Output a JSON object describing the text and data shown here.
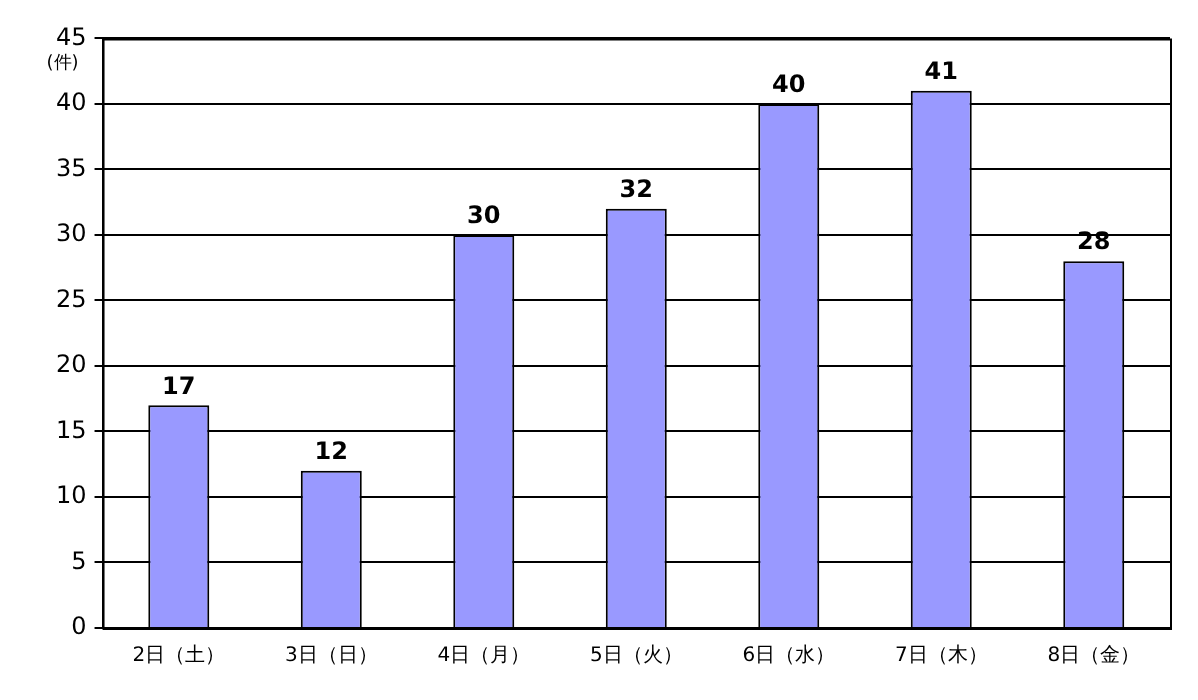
{
  "chart_data": {
    "type": "bar",
    "ylabel": "(件)",
    "categories": [
      "2日（土）",
      "3日（日）",
      "4日（月）",
      "5日（火）",
      "6日（水）",
      "7日（木）",
      "8日（金）"
    ],
    "values": [
      17,
      12,
      30,
      32,
      40,
      41,
      28
    ],
    "color": "#9999ff",
    "ylim": [
      0,
      45
    ],
    "yticks": [
      0,
      5,
      10,
      15,
      20,
      25,
      30,
      35,
      40,
      45
    ],
    "grid": "y",
    "data_labels": true
  }
}
